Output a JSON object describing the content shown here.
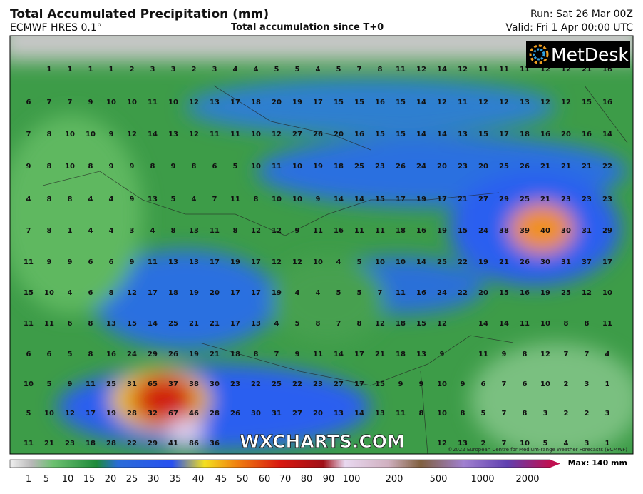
{
  "header": {
    "title": "Total Accumulated Precipitation (mm)",
    "subtitle": "ECMWF HRES 0.1°",
    "center": "Total accumulation since T+0",
    "run": "Run: Sat 26 Mar 00Z",
    "valid": "Valid: Fri 1 Apr 00:00 UTC"
  },
  "logo": "MetDesk",
  "watermark": "WXCHARTS.COM",
  "copyright": "©2022 European Centre for Medium-range Weather Forecasts (ECMWF)",
  "grid": {
    "rows": [
      [
        null,
        1,
        1,
        1,
        1,
        2,
        3,
        3,
        2,
        3,
        4,
        4,
        5,
        5,
        4,
        5,
        7,
        8,
        11,
        12,
        14,
        12,
        11,
        11,
        11,
        12,
        12,
        21,
        16
      ],
      [
        6,
        7,
        7,
        9,
        10,
        10,
        11,
        10,
        12,
        13,
        17,
        18,
        20,
        19,
        17,
        15,
        15,
        16,
        15,
        14,
        12,
        11,
        12,
        12,
        13,
        12,
        12,
        15,
        16
      ],
      [
        7,
        8,
        10,
        10,
        9,
        12,
        14,
        13,
        12,
        11,
        11,
        10,
        12,
        27,
        26,
        20,
        16,
        15,
        15,
        14,
        14,
        13,
        15,
        17,
        18,
        16,
        20,
        16,
        14
      ],
      [
        9,
        8,
        10,
        8,
        9,
        9,
        8,
        9,
        8,
        6,
        5,
        10,
        11,
        10,
        19,
        18,
        25,
        23,
        26,
        24,
        20,
        23,
        20,
        25,
        26,
        21,
        21,
        21,
        22
      ],
      [
        4,
        8,
        8,
        4,
        4,
        9,
        13,
        5,
        4,
        7,
        11,
        8,
        10,
        10,
        9,
        14,
        14,
        15,
        17,
        19,
        17,
        21,
        27,
        29,
        25,
        21,
        23,
        23,
        23
      ],
      [
        7,
        8,
        1,
        4,
        4,
        3,
        4,
        8,
        13,
        11,
        8,
        12,
        12,
        9,
        11,
        16,
        11,
        11,
        18,
        16,
        19,
        15,
        24,
        38,
        39,
        40,
        30,
        31,
        29
      ],
      [
        11,
        9,
        9,
        6,
        6,
        9,
        11,
        13,
        13,
        17,
        19,
        17,
        12,
        12,
        10,
        4,
        5,
        10,
        10,
        14,
        25,
        22,
        19,
        21,
        26,
        30,
        31,
        37,
        17
      ],
      [
        15,
        10,
        4,
        6,
        8,
        12,
        17,
        18,
        19,
        20,
        17,
        17,
        19,
        4,
        4,
        5,
        5,
        7,
        11,
        16,
        24,
        22,
        20,
        15,
        16,
        19,
        25,
        12,
        10
      ],
      [
        11,
        11,
        6,
        8,
        13,
        15,
        14,
        25,
        21,
        21,
        17,
        13,
        4,
        5,
        8,
        7,
        8,
        12,
        18,
        15,
        12,
        null,
        14,
        14,
        11,
        10,
        8,
        8,
        11
      ],
      [
        6,
        6,
        5,
        8,
        16,
        24,
        29,
        26,
        19,
        21,
        18,
        8,
        7,
        9,
        11,
        14,
        17,
        21,
        18,
        13,
        9,
        null,
        11,
        9,
        8,
        12,
        7,
        7,
        4
      ],
      [
        10,
        5,
        9,
        11,
        25,
        31,
        65,
        37,
        38,
        30,
        23,
        22,
        25,
        22,
        23,
        27,
        17,
        15,
        9,
        9,
        10,
        9,
        6,
        7,
        6,
        10,
        2,
        3,
        1
      ],
      [
        5,
        10,
        12,
        17,
        19,
        28,
        32,
        67,
        46,
        28,
        26,
        30,
        31,
        27,
        20,
        13,
        14,
        13,
        11,
        8,
        10,
        8,
        5,
        7,
        8,
        3,
        2,
        2,
        3
      ],
      [
        11,
        21,
        23,
        18,
        28,
        22,
        29,
        41,
        86,
        36,
        null,
        null,
        null,
        null,
        null,
        null,
        null,
        null,
        null,
        null,
        12,
        13,
        2,
        7,
        10,
        5,
        4,
        3,
        1
      ]
    ]
  },
  "colorbar": {
    "labels": [
      1,
      5,
      10,
      15,
      20,
      25,
      30,
      35,
      40,
      45,
      50,
      60,
      70,
      80,
      90,
      100,
      200,
      500,
      1000,
      2000
    ],
    "max": "Max: 140 mm"
  }
}
